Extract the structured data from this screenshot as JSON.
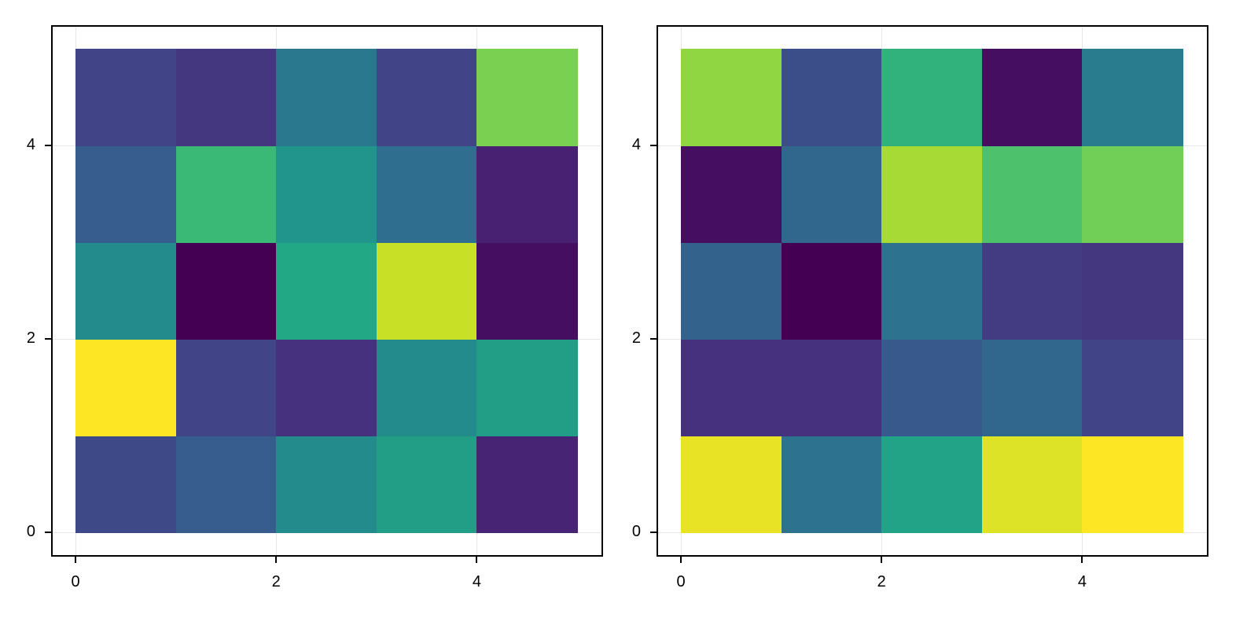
{
  "chart_data": [
    {
      "type": "heatmap",
      "title": "",
      "xlabel": "",
      "ylabel": "",
      "colormap": "viridis",
      "x_edges": [
        0,
        1,
        2,
        3,
        4,
        5
      ],
      "y_edges": [
        0,
        1,
        2,
        3,
        4,
        5
      ],
      "xlim": [
        -0.25,
        5.25
      ],
      "ylim": [
        -0.25,
        5.25
      ],
      "xticks": [
        0,
        2,
        4
      ],
      "yticks": [
        0,
        2,
        4
      ],
      "grid": true,
      "rows_bottom_to_top": [
        [
          0.28,
          0.37,
          0.6,
          0.7,
          0.13
        ],
        [
          1.0,
          0.25,
          0.18,
          0.6,
          0.7
        ],
        [
          0.6,
          0.0,
          0.75,
          0.95,
          0.05
        ],
        [
          0.37,
          0.8,
          0.65,
          0.45,
          0.12
        ],
        [
          0.25,
          0.2,
          0.5,
          0.25,
          0.88
        ]
      ]
    },
    {
      "type": "heatmap",
      "title": "",
      "xlabel": "",
      "ylabel": "",
      "colormap": "viridis",
      "x_edges": [
        0,
        1,
        2,
        3,
        4,
        5
      ],
      "y_edges": [
        0,
        1,
        2,
        3,
        4,
        5
      ],
      "xlim": [
        -0.25,
        5.25
      ],
      "ylim": [
        -0.25,
        5.25
      ],
      "xticks": [
        0,
        2,
        4
      ],
      "yticks": [
        0,
        2,
        4
      ],
      "grid": true,
      "rows_bottom_to_top": [
        [
          0.98,
          0.47,
          0.72,
          0.97,
          1.0
        ],
        [
          0.18,
          0.18,
          0.35,
          0.42,
          0.25
        ],
        [
          0.4,
          0.0,
          0.47,
          0.22,
          0.2
        ],
        [
          0.05,
          0.42,
          0.92,
          0.83,
          0.87
        ],
        [
          0.9,
          0.3,
          0.78,
          0.05,
          0.52
        ]
      ]
    }
  ],
  "ticks": {
    "t0": "0",
    "t2": "2",
    "t4": "4"
  }
}
